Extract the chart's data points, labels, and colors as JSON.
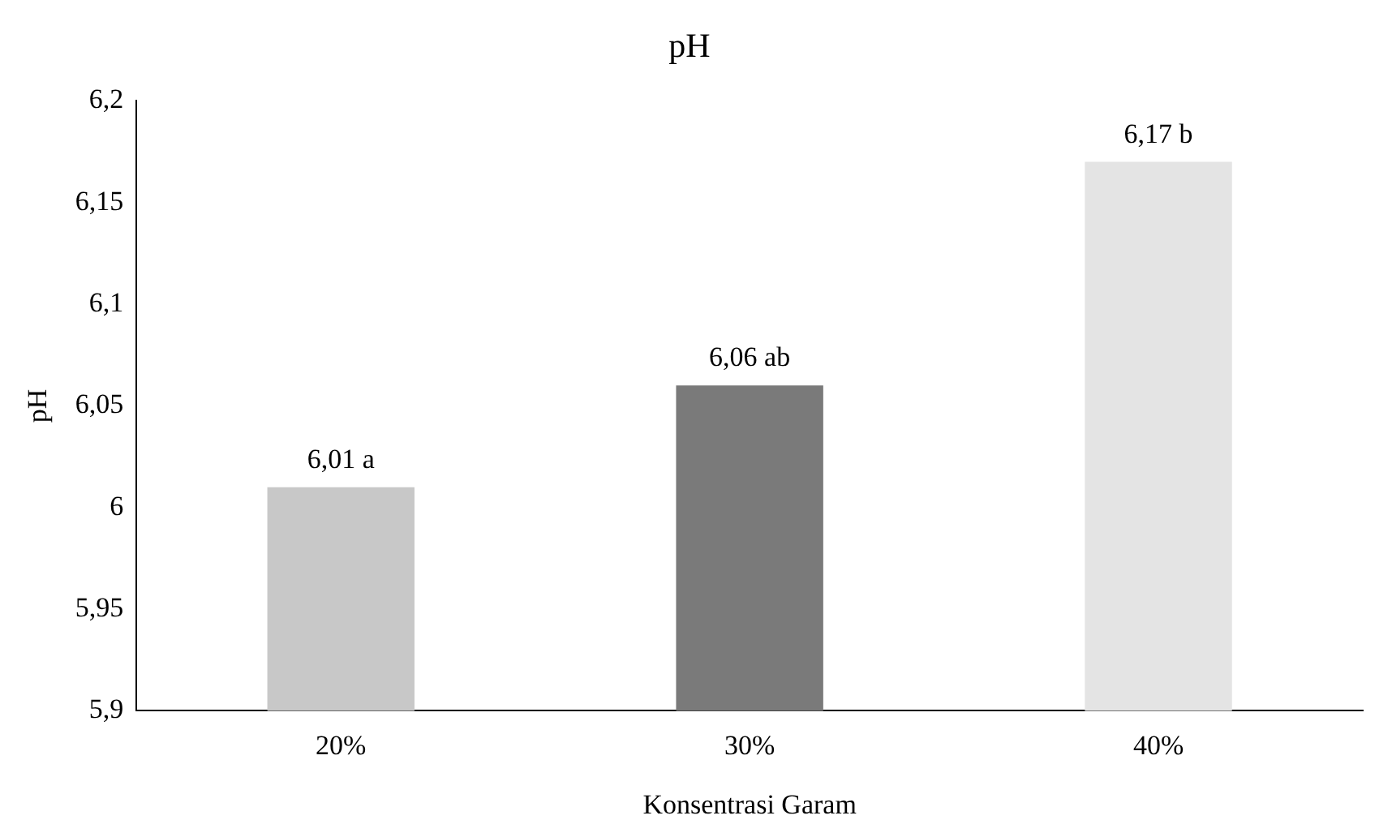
{
  "chart_data": {
    "type": "bar",
    "title": "pH",
    "xlabel": "Konsentrasi Garam",
    "ylabel": "pH",
    "categories": [
      "20%",
      "30%",
      "40%"
    ],
    "values": [
      6.01,
      6.06,
      6.17
    ],
    "colors": [
      "#c8c8c8",
      "#7a7a7a",
      "#e4e4e4"
    ],
    "value_labels": [
      "6,01 a",
      "6,06 ab",
      "6,17 b"
    ],
    "ylim": [
      5.9,
      6.2
    ],
    "yticks": [
      {
        "value": 5.9,
        "label": "5,9"
      },
      {
        "value": 5.95,
        "label": "5,95"
      },
      {
        "value": 6,
        "label": "6"
      },
      {
        "value": 6.05,
        "label": "6,05"
      },
      {
        "value": 6.1,
        "label": "6,1"
      },
      {
        "value": 6.15,
        "label": "6,15"
      },
      {
        "value": 6.2,
        "label": "6,2"
      }
    ],
    "grid": false,
    "legend": false
  }
}
